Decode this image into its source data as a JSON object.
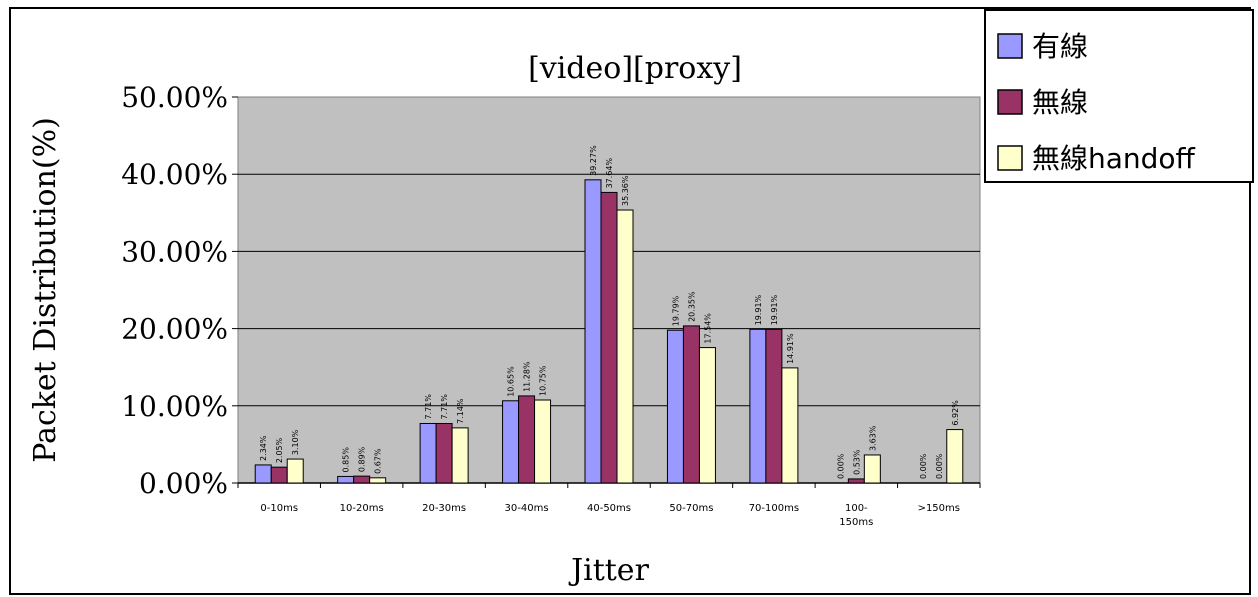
{
  "chart_data": {
    "type": "bar",
    "title": "[video][proxy]",
    "xlabel": "Jitter",
    "ylabel": "Packet Distribution(%)",
    "ylim": [
      0,
      50
    ],
    "yticks": [
      "0.00%",
      "10.00%",
      "20.00%",
      "30.00%",
      "40.00%",
      "50.00%"
    ],
    "grid": true,
    "legend_position": "top-right",
    "categories": [
      "0-10ms",
      "10-20ms",
      "20-30ms",
      "30-40ms",
      "40-50ms",
      "50-70ms",
      "70-100ms",
      "100-\n150ms",
      ">150ms"
    ],
    "series": [
      {
        "name": "有線",
        "color": "#9999ff",
        "values": [
          2.34,
          0.85,
          7.71,
          10.65,
          39.27,
          19.79,
          19.91,
          0.0,
          0.0
        ],
        "labels": [
          "2.34%",
          "0.85%",
          "7.71%",
          "10.65%",
          "39.27%",
          "19.79%",
          "19.91%",
          "0.00%",
          "0.00%"
        ]
      },
      {
        "name": "無線",
        "color": "#993366",
        "values": [
          2.05,
          0.89,
          7.71,
          11.28,
          37.64,
          20.35,
          19.91,
          0.53,
          0.0
        ],
        "labels": [
          "2.05%",
          "0.89%",
          "7.71%",
          "11.28%",
          "37.64%",
          "20.35%",
          "19.91%",
          "0.53%",
          "0.00%"
        ]
      },
      {
        "name": "無線handoff",
        "color": "#ffffcc",
        "values": [
          3.1,
          0.67,
          7.14,
          10.75,
          35.36,
          17.54,
          14.91,
          3.63,
          6.92
        ],
        "labels": [
          "3.10%",
          "0.67%",
          "7.14%",
          "10.75%",
          "35.36%",
          "17.54%",
          "14.91%",
          "3.63%",
          "6.92%"
        ]
      }
    ]
  }
}
